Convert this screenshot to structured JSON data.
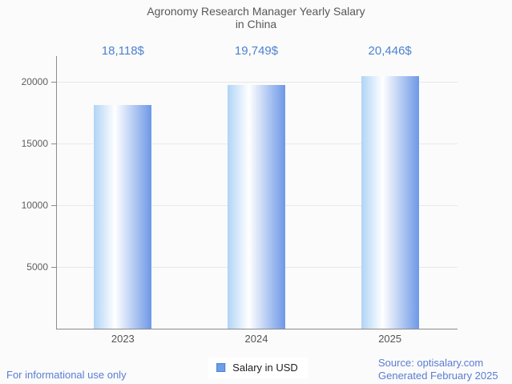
{
  "page": {
    "background": "#fbfbfb"
  },
  "title": {
    "line1": "Agronomy Research Manager Yearly Salary",
    "line2": "in China"
  },
  "legend": {
    "label": "Salary in USD",
    "swatch_color": "#6d9eea"
  },
  "footer": {
    "disclaimer": "For informational use only",
    "source": "Source: optisalary.com",
    "generated": "Generated February 2025"
  },
  "colors": {
    "value_label": "#4d82d1",
    "footer_text": "#5a7dd3",
    "bar_gradient_left": "#b0d4f6",
    "bar_gradient_mid": "#ffffff",
    "bar_gradient_right": "#6d98e7",
    "axis": "#8b8b8b",
    "gridline": "#e8e8e8",
    "title_text": "#58585a"
  },
  "chart_data": {
    "type": "bar",
    "title": "Agronomy Research Manager Yearly Salary in China",
    "categories": [
      "2023",
      "2024",
      "2025"
    ],
    "series": [
      {
        "name": "Salary in USD",
        "values": [
          18118,
          19749,
          20446
        ]
      }
    ],
    "value_labels": [
      "18,118$",
      "19,749$",
      "20,446$"
    ],
    "xlabel": "",
    "ylabel": "",
    "yticks": [
      5000,
      10000,
      15000,
      20000
    ],
    "ytick_labels": [
      "5000",
      "10000",
      "15000",
      "20000"
    ],
    "ylim": [
      0,
      22000
    ],
    "grid": true,
    "legend_position": "bottom",
    "bar_orientation": "vertical"
  }
}
